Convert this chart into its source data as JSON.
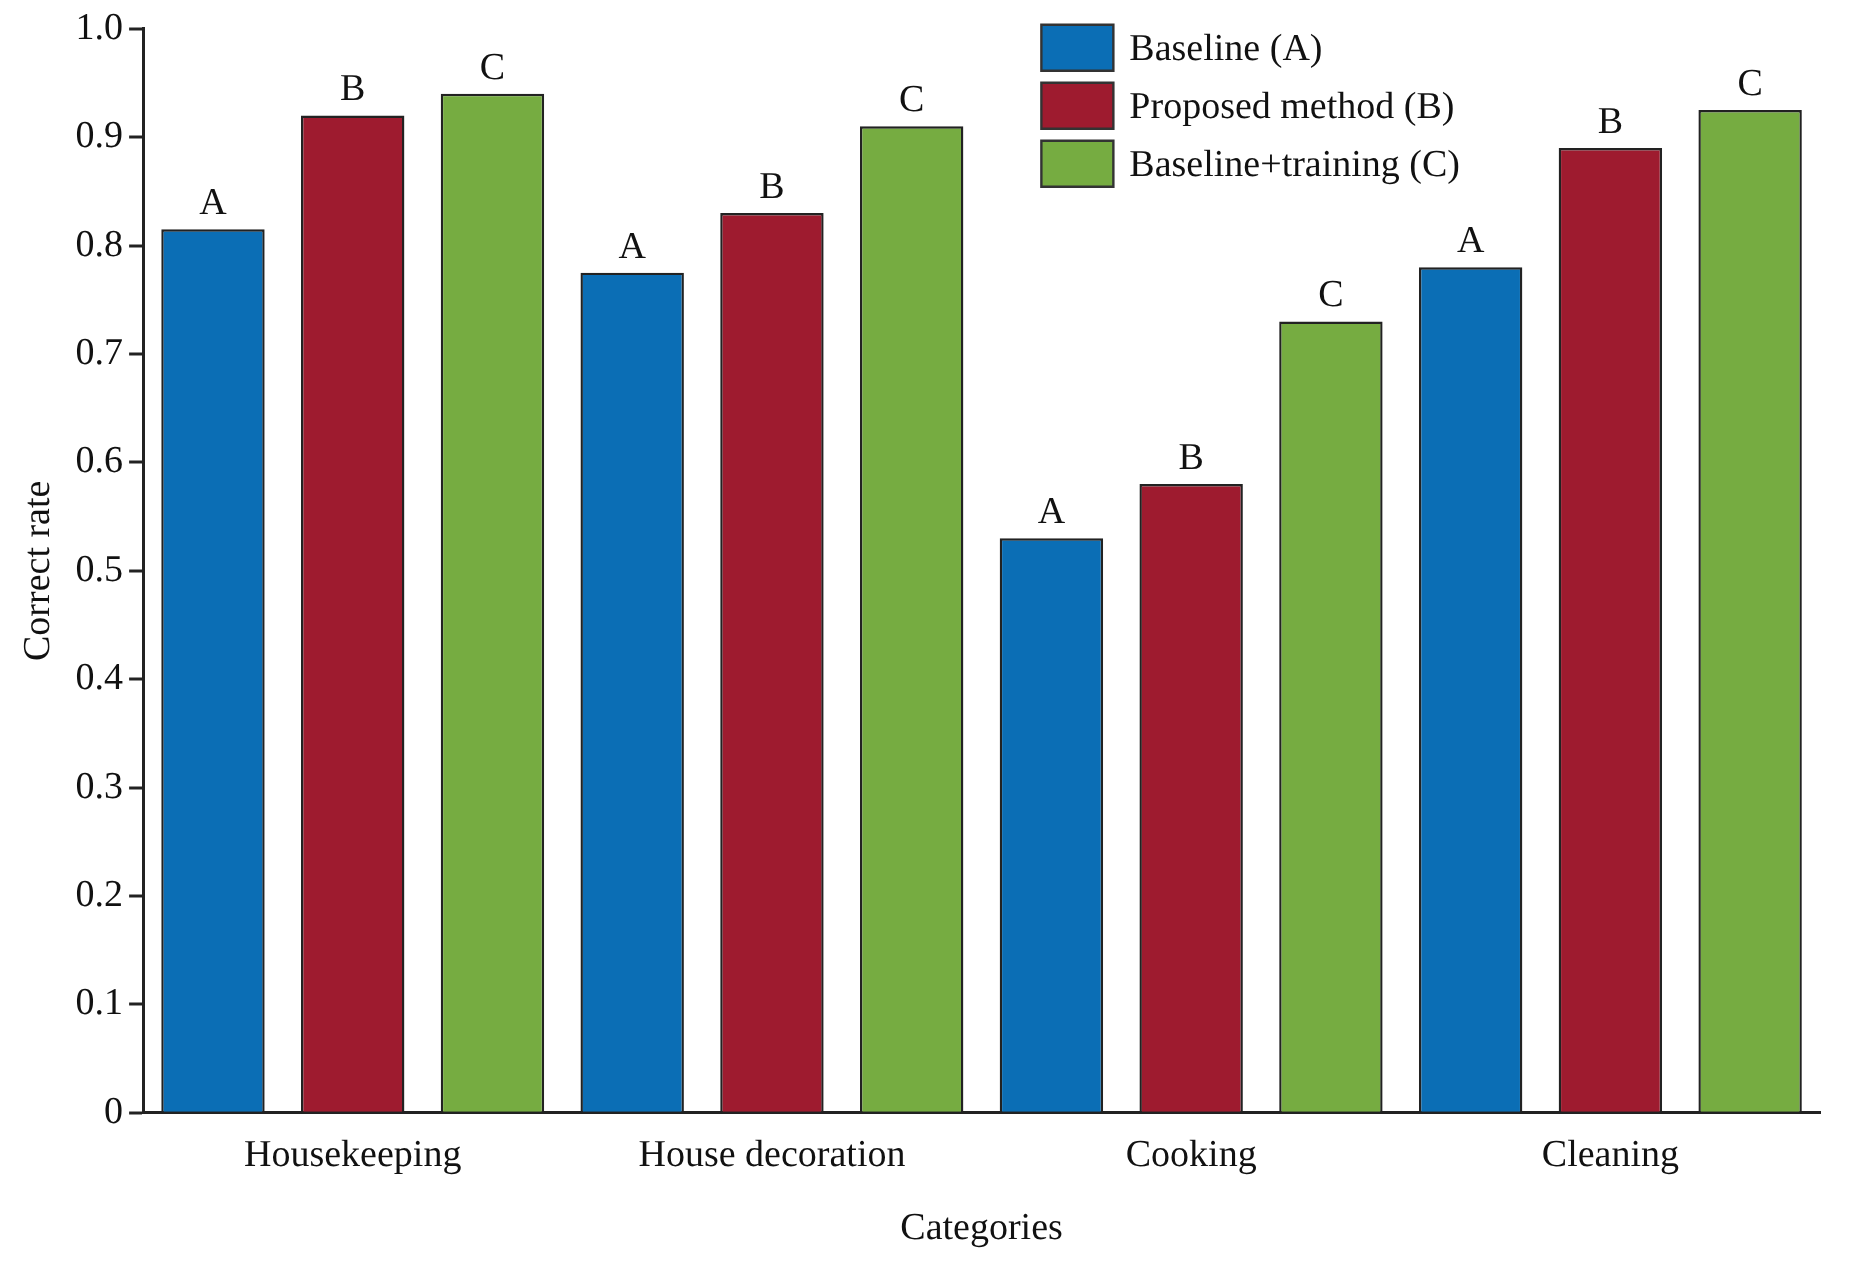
{
  "chart_data": {
    "type": "bar",
    "xlabel": "Categories",
    "ylabel": "Correct rate",
    "categories": [
      "Housekeeping",
      "House decoration",
      "Cooking",
      "Cleaning"
    ],
    "series": [
      {
        "name": "Baseline (A)",
        "color": "#0b6eb5",
        "values": [
          0.815,
          0.775,
          0.53,
          0.78
        ],
        "value_labels": [
          "A",
          "A",
          "A",
          "A"
        ]
      },
      {
        "name": "Proposed method (B)",
        "color": "#9e1b2f",
        "values": [
          0.92,
          0.83,
          0.58,
          0.89
        ],
        "value_labels": [
          "B",
          "B",
          "B",
          "B"
        ]
      },
      {
        "name": "Baseline+training (C)",
        "color": "#76ac41",
        "values": [
          0.94,
          0.91,
          0.73,
          0.925
        ],
        "value_labels": [
          "C",
          "C",
          "C",
          "C"
        ]
      }
    ],
    "ylim": [
      0,
      1
    ],
    "yticks": [
      0,
      0.1,
      0.2,
      0.3,
      0.4,
      0.5,
      0.6,
      0.7,
      0.8,
      0.9,
      {
        "value": 1,
        "label": "1.0"
      }
    ],
    "grid": false,
    "legend": "top right"
  }
}
